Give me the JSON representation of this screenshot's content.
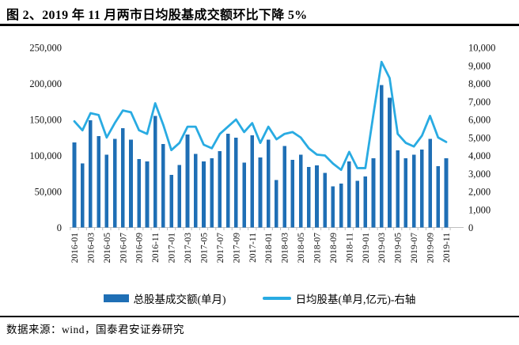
{
  "header": {
    "title": "图 2、2019 年 11 月两市日均股基成交额环比下降 5%"
  },
  "footer": {
    "source": "数据来源：wind，国泰君安证券研究"
  },
  "legend": {
    "bar_label": "总股基成交额(单月)",
    "line_label": "日均股基(单月,亿元)-右轴"
  },
  "colors": {
    "bar": "#1F6FB5",
    "line": "#29ABE2",
    "axis_line": "#BFBFBF",
    "label_text": "#111111"
  },
  "chart_data": {
    "type": "bar",
    "subtype": "combo-bar-line-dual-axis",
    "title": "图 2、2019 年 11 月两市日均股基成交额环比下降 5%",
    "categories": [
      "2016-01",
      "2016-02",
      "2016-03",
      "2016-04",
      "2016-05",
      "2016-06",
      "2016-07",
      "2016-08",
      "2016-09",
      "2016-10",
      "2016-11",
      "2016-12",
      "2017-01",
      "2017-02",
      "2017-03",
      "2017-04",
      "2017-05",
      "2017-06",
      "2017-07",
      "2017-08",
      "2017-09",
      "2017-10",
      "2017-11",
      "2017-12",
      "2018-01",
      "2018-02",
      "2018-03",
      "2018-04",
      "2018-05",
      "2018-06",
      "2018-07",
      "2018-08",
      "2018-09",
      "2018-10",
      "2018-11",
      "2018-12",
      "2019-01",
      "2019-02",
      "2019-03",
      "2019-04",
      "2019-05",
      "2019-06",
      "2019-07",
      "2019-08",
      "2019-09",
      "2019-10",
      "2019-11"
    ],
    "series": [
      {
        "name": "总股基成交额(单月)",
        "type": "bar",
        "axis": "left",
        "values": [
          118000,
          89000,
          149000,
          127000,
          101000,
          123000,
          138000,
          122000,
          95000,
          92000,
          155000,
          116000,
          73000,
          87000,
          129000,
          102000,
          92000,
          96000,
          106000,
          130000,
          125000,
          90000,
          128000,
          97000,
          122000,
          66000,
          113000,
          94000,
          101000,
          84000,
          86000,
          76000,
          57000,
          61000,
          92000,
          65000,
          71000,
          96000,
          198000,
          180000,
          107000,
          96000,
          101000,
          108000,
          123000,
          85000,
          96000
        ]
      },
      {
        "name": "日均股基(单月,亿元)-右轴",
        "type": "line",
        "axis": "right",
        "values": [
          5900,
          5400,
          6350,
          6250,
          5000,
          5800,
          6500,
          6400,
          5400,
          5200,
          6900,
          5700,
          4300,
          4700,
          5600,
          5600,
          4600,
          4400,
          5200,
          5600,
          6000,
          5300,
          5800,
          4700,
          5600,
          4900,
          5200,
          5300,
          5000,
          4400,
          4050,
          4000,
          3550,
          3200,
          4200,
          3300,
          3300,
          6300,
          9200,
          8300,
          5200,
          4700,
          4500,
          5100,
          6200,
          5000,
          4750
        ]
      }
    ],
    "left_axis": {
      "min": 0,
      "max": 250000,
      "step": 50000
    },
    "right_axis": {
      "min": 0,
      "max": 10000,
      "step": 1000
    },
    "x_tick_label_step": 2,
    "x_labels_rotated_degrees": -90,
    "grid": false,
    "legend_position": "bottom"
  }
}
